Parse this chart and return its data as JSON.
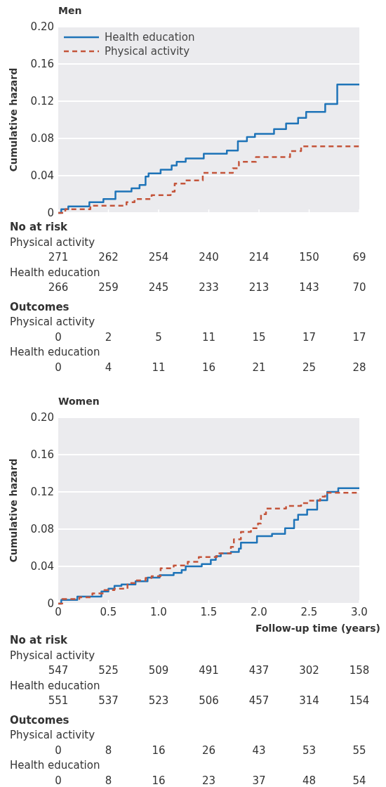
{
  "chart_data": [
    {
      "type": "step",
      "title": "Men",
      "ylabel": "Cumulative hazard",
      "xlim": [
        0,
        3
      ],
      "ylim": [
        0,
        0.2
      ],
      "xticks": [
        0,
        0.5,
        1,
        1.5,
        2,
        2.5,
        3
      ],
      "yticks": [
        0,
        0.04,
        0.08,
        0.12,
        0.16,
        {
          "value": 0.2,
          "label": "0.20"
        }
      ],
      "tick_labels": "y",
      "grid": "y",
      "legend": "top left",
      "series": [
        {
          "name": "Health education",
          "color": "#1f74b8",
          "line_style": "solid",
          "x": [
            0,
            0.03,
            0.1,
            0.31,
            0.45,
            0.57,
            0.73,
            0.81,
            0.87,
            0.9,
            1.02,
            1.13,
            1.18,
            1.27,
            1.45,
            1.68,
            1.79,
            1.88,
            1.96,
            2.15,
            2.27,
            2.39,
            2.47,
            2.66,
            2.78,
            3.0
          ],
          "values": [
            0,
            0.004,
            0.007,
            0.0115,
            0.015,
            0.023,
            0.0265,
            0.03,
            0.039,
            0.0425,
            0.0465,
            0.051,
            0.055,
            0.0585,
            0.0635,
            0.067,
            0.077,
            0.0815,
            0.085,
            0.09,
            0.096,
            0.102,
            0.1085,
            0.117,
            0.138,
            0.138
          ]
        },
        {
          "name": "Physical activity",
          "color": "#c4553b",
          "line_style": "dashed",
          "x": [
            0,
            0.07,
            0.32,
            0.68,
            0.76,
            0.93,
            1.12,
            1.16,
            1.27,
            1.44,
            1.74,
            1.8,
            1.97,
            2.31,
            2.42,
            3.0
          ],
          "values": [
            0,
            0.004,
            0.0078,
            0.0115,
            0.015,
            0.019,
            0.0228,
            0.0315,
            0.035,
            0.043,
            0.048,
            0.055,
            0.06,
            0.0665,
            0.0715,
            0.0715
          ]
        }
      ],
      "annotations": [
        "No at risk",
        "Physical activity",
        "271 262 254 240 214 150 69",
        "Health education",
        "266 259 245 233 213 143 70",
        "Outcomes",
        "Physical activity",
        "0 2 5 11 15 17 17",
        "Health education",
        "0 4 11 16 21 25 28"
      ]
    },
    {
      "type": "step",
      "title": "Women",
      "ylabel": "Cumulative hazard",
      "xlabel": "Follow-up time (years)",
      "xlim": [
        0,
        3
      ],
      "ylim": [
        0,
        0.2
      ],
      "xticks": [
        0,
        0.5,
        {
          "value": 1,
          "label": "1.0"
        },
        1.5,
        {
          "value": 2,
          "label": "2.0"
        },
        2.5,
        {
          "value": 3,
          "label": "3.0"
        }
      ],
      "yticks": [
        0,
        0.04,
        0.08,
        0.12,
        0.16,
        {
          "value": 0.2,
          "label": "0.20"
        }
      ],
      "grid": "y",
      "series": [
        {
          "color": "#1f74b8",
          "line_style": "solid",
          "x": [
            0,
            0.03,
            0.19,
            0.43,
            0.5,
            0.56,
            0.63,
            0.77,
            0.89,
            1.01,
            1.15,
            1.23,
            1.27,
            1.43,
            1.52,
            1.57,
            1.62,
            1.72,
            1.8,
            1.82,
            1.98,
            2.13,
            2.26,
            2.35,
            2.39,
            2.48,
            2.58,
            2.68,
            2.79,
            3.0
          ],
          "values": [
            0,
            0.004,
            0.0075,
            0.013,
            0.016,
            0.019,
            0.0205,
            0.024,
            0.028,
            0.0305,
            0.033,
            0.036,
            0.04,
            0.0425,
            0.047,
            0.051,
            0.054,
            0.0555,
            0.059,
            0.0655,
            0.0725,
            0.075,
            0.081,
            0.09,
            0.0955,
            0.101,
            0.111,
            0.12,
            0.124,
            0.124
          ]
        },
        {
          "color": "#c4553b",
          "line_style": "dashed",
          "x": [
            0,
            0.04,
            0.21,
            0.34,
            0.46,
            0.56,
            0.69,
            0.76,
            0.87,
            0.93,
            1.02,
            1.15,
            1.29,
            1.4,
            1.58,
            1.72,
            1.75,
            1.82,
            1.92,
            1.99,
            2.02,
            2.07,
            2.27,
            2.42,
            2.5,
            2.61,
            2.66,
            3.0
          ],
          "values": [
            0,
            0.005,
            0.0068,
            0.011,
            0.0145,
            0.016,
            0.022,
            0.025,
            0.0275,
            0.0295,
            0.038,
            0.041,
            0.045,
            0.05,
            0.054,
            0.061,
            0.069,
            0.077,
            0.081,
            0.086,
            0.096,
            0.102,
            0.105,
            0.108,
            0.1105,
            0.115,
            0.119,
            0.119
          ]
        }
      ],
      "annotations": [
        "No at risk",
        "Physical activity",
        "547 525 509 491 437 302 158",
        "Health education",
        "551 537 523 506 457 314 154",
        "Outcomes",
        "Physical activity",
        "0 8 16 26 43 53 55",
        "Health education",
        "0 8 16 23 37 48 54"
      ]
    }
  ]
}
